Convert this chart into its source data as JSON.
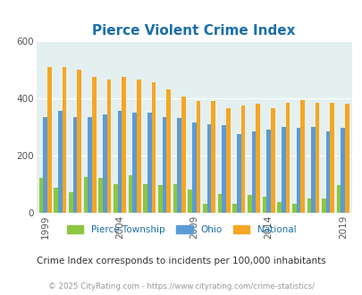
{
  "title": "Pierce Violent Crime Index",
  "years": [
    1999,
    2000,
    2001,
    2002,
    2003,
    2004,
    2005,
    2006,
    2007,
    2008,
    2009,
    2010,
    2011,
    2012,
    2013,
    2014,
    2015,
    2016,
    2017,
    2018,
    2019
  ],
  "pierce": [
    120,
    85,
    70,
    125,
    120,
    100,
    130,
    100,
    95,
    100,
    80,
    30,
    65,
    30,
    60,
    55,
    35,
    30,
    50,
    50,
    95
  ],
  "ohio": [
    335,
    355,
    335,
    335,
    345,
    355,
    350,
    350,
    335,
    330,
    315,
    310,
    305,
    275,
    285,
    290,
    300,
    295,
    300,
    285,
    295
  ],
  "national": [
    510,
    510,
    500,
    475,
    465,
    475,
    465,
    455,
    430,
    405,
    390,
    390,
    365,
    375,
    380,
    365,
    385,
    395,
    385,
    383,
    380
  ],
  "pierce_color": "#8dc63f",
  "ohio_color": "#5b9bd5",
  "national_color": "#f5a623",
  "bg_color": "#e4f0f0",
  "ylim": [
    0,
    600
  ],
  "yticks": [
    0,
    200,
    400,
    600
  ],
  "xlabel_ticks": [
    1999,
    2004,
    2009,
    2014,
    2019
  ],
  "legend_labels": [
    "Pierce Township",
    "Ohio",
    "National"
  ],
  "subtitle": "Crime Index corresponds to incidents per 100,000 inhabitants",
  "footer": "© 2025 CityRating.com - https://www.cityrating.com/crime-statistics/",
  "title_color": "#1a6fa8",
  "subtitle_color": "#333333",
  "footer_color": "#999999",
  "legend_color": "#1a6fa8"
}
